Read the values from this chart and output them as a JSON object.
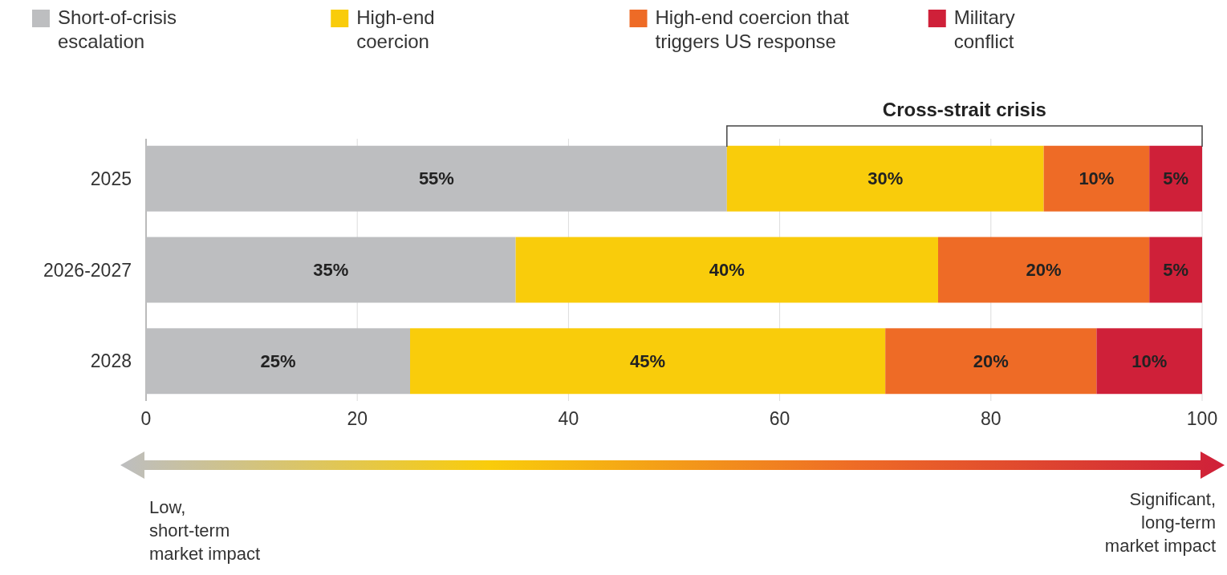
{
  "chart_data": {
    "type": "bar",
    "orientation": "horizontal",
    "stacked": true,
    "categories": [
      "2025",
      "2026-2027",
      "2028"
    ],
    "series": [
      {
        "name": "Short-of-crisis escalation",
        "color": "#bdbec0",
        "values": [
          55,
          35,
          25
        ],
        "value_labels": [
          "55%",
          "35%",
          "25%"
        ]
      },
      {
        "name": "High-end coercion",
        "color": "#f9cc0b",
        "values": [
          30,
          40,
          45
        ],
        "value_labels": [
          "30%",
          "40%",
          "45%"
        ]
      },
      {
        "name": "High-end coercion that triggers US response",
        "color": "#ee6b26",
        "values": [
          10,
          20,
          20
        ],
        "value_labels": [
          "10%",
          "20%",
          "20%"
        ]
      },
      {
        "name": "Military conflict",
        "color": "#cf2039",
        "values": [
          5,
          5,
          10
        ],
        "value_labels": [
          "5%",
          "5%",
          "10%"
        ]
      }
    ],
    "xlim": [
      0,
      100
    ],
    "xticks": [
      0,
      20,
      40,
      60,
      80,
      100
    ],
    "grid": "x",
    "legend": "top",
    "annotations": [
      "Cross-strait crisis",
      "Low, short-term market impact",
      "Significant, long-term market impact"
    ]
  }
}
